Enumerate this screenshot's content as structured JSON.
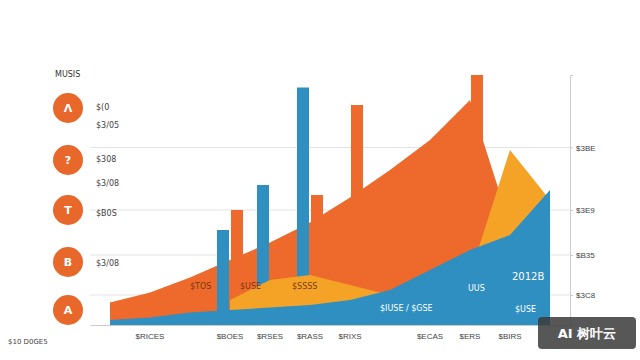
{
  "chart_data": {
    "type": "bar",
    "categories": [
      null,
      "$RICES",
      null,
      "$BOES",
      "$RSES",
      "$RASS",
      "$RIXS",
      null,
      "$ECAS",
      "$ERS",
      "$BIRS",
      null
    ],
    "series": [
      {
        "type": "area",
        "color": "#ee6a2c",
        "values": [
          9,
          13,
          19,
          26,
          33,
          41,
          51,
          62,
          74,
          90,
          40,
          30
        ]
      },
      {
        "type": "bar",
        "color": "#2f8fc0",
        "values": [
          null,
          null,
          null,
          38,
          56,
          95,
          null,
          null,
          null,
          null,
          null,
          null
        ]
      },
      {
        "type": "bar",
        "color": "#ee6a2c",
        "values": [
          null,
          null,
          null,
          46,
          null,
          52,
          88,
          null,
          null,
          100,
          null,
          null
        ]
      },
      {
        "type": "area",
        "color": "#f5a327",
        "values": [
          null,
          null,
          null,
          10,
          18,
          20,
          16,
          12,
          14,
          20,
          70,
          50
        ]
      },
      {
        "type": "area",
        "color": "#2f8fc0",
        "values": [
          2,
          3,
          5,
          6,
          7,
          8,
          10,
          14,
          22,
          30,
          36,
          54
        ]
      }
    ],
    "ylim": [
      0,
      100
    ],
    "yticks": [
      {
        "value": 71,
        "label": "$3BE"
      },
      {
        "value": 46,
        "label": "$3E9"
      },
      {
        "value": 28,
        "label": "$B35"
      },
      {
        "value": 12,
        "label": "$3C8"
      }
    ],
    "grid": true,
    "annotations": [
      "MUSIS",
      "Λ",
      "?",
      "T",
      "B",
      "A",
      "$(0",
      "$3/05",
      "$308",
      "$3/08",
      "$B0S",
      "$3/08",
      "$10 D0GE5",
      "$TOS",
      "$USE",
      "$SSSS",
      "$IUSE / $GSE",
      "UUS",
      "2012B",
      "$USE",
      "AI 树叶云"
    ]
  }
}
